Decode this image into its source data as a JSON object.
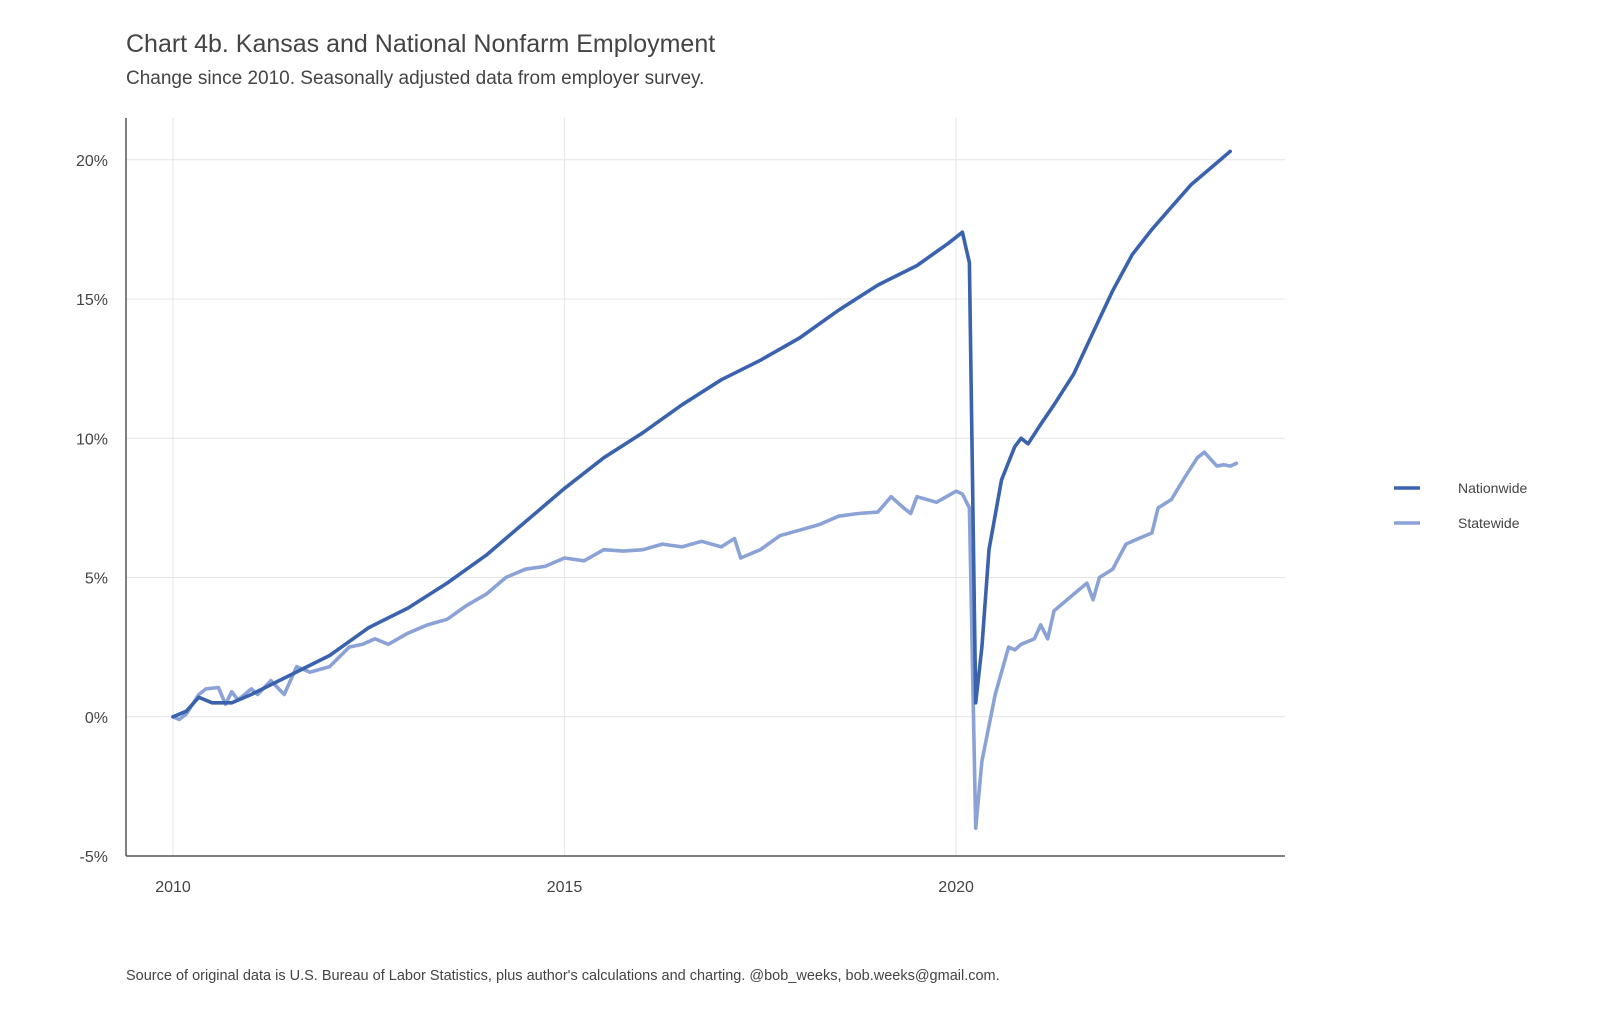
{
  "chart_data": {
    "type": "line",
    "title": "Chart 4b. Kansas and National Nonfarm Employment",
    "subtitle": "Change since 2010. Seasonally adjusted data from employer survey.",
    "caption": "Source of original data is U.S. Bureau of Labor Statistics, plus author's calculations and charting. @bob_weeks, bob.weeks@gmail.com.",
    "xlabel": "",
    "ylabel": "",
    "xlim": [
      2009.4,
      2024.2
    ],
    "ylim": [
      -5,
      21.5
    ],
    "x_ticks": [
      2010,
      2015,
      2020
    ],
    "x_tick_labels": [
      "2010",
      "2015",
      "2020"
    ],
    "y_ticks": [
      -5,
      0,
      5,
      10,
      15,
      20
    ],
    "y_tick_labels": [
      "-5%",
      "0%",
      "5%",
      "10%",
      "15%",
      "20%"
    ],
    "grid": true,
    "legend_position": "right",
    "series": [
      {
        "name": "Nationwide",
        "color": "#3a62ad",
        "points": [
          [
            2010.0,
            0.0
          ],
          [
            2010.17,
            0.2
          ],
          [
            2010.33,
            0.7
          ],
          [
            2010.5,
            0.5
          ],
          [
            2010.75,
            0.5
          ],
          [
            2011.0,
            0.8
          ],
          [
            2011.5,
            1.5
          ],
          [
            2012.0,
            2.2
          ],
          [
            2012.5,
            3.2
          ],
          [
            2013.0,
            3.9
          ],
          [
            2013.5,
            4.8
          ],
          [
            2014.0,
            5.8
          ],
          [
            2014.5,
            7.0
          ],
          [
            2015.0,
            8.2
          ],
          [
            2015.5,
            9.3
          ],
          [
            2016.0,
            10.2
          ],
          [
            2016.5,
            11.2
          ],
          [
            2017.0,
            12.1
          ],
          [
            2017.5,
            12.8
          ],
          [
            2018.0,
            13.6
          ],
          [
            2018.5,
            14.6
          ],
          [
            2019.0,
            15.5
          ],
          [
            2019.5,
            16.2
          ],
          [
            2019.9,
            17.0
          ],
          [
            2020.08,
            17.4
          ],
          [
            2020.17,
            16.3
          ],
          [
            2020.25,
            0.5
          ],
          [
            2020.33,
            2.5
          ],
          [
            2020.42,
            6.0
          ],
          [
            2020.58,
            8.5
          ],
          [
            2020.75,
            9.7
          ],
          [
            2020.83,
            10.0
          ],
          [
            2020.92,
            9.8
          ],
          [
            2021.08,
            10.5
          ],
          [
            2021.25,
            11.2
          ],
          [
            2021.5,
            12.3
          ],
          [
            2021.75,
            13.8
          ],
          [
            2022.0,
            15.3
          ],
          [
            2022.25,
            16.6
          ],
          [
            2022.5,
            17.5
          ],
          [
            2022.75,
            18.3
          ],
          [
            2023.0,
            19.1
          ],
          [
            2023.25,
            19.7
          ],
          [
            2023.5,
            20.3
          ]
        ]
      },
      {
        "name": "Statewide",
        "color": "#8aa2d6",
        "points": [
          [
            2010.0,
            0.0
          ],
          [
            2010.08,
            -0.1
          ],
          [
            2010.17,
            0.1
          ],
          [
            2010.33,
            0.8
          ],
          [
            2010.42,
            1.0
          ],
          [
            2010.58,
            1.05
          ],
          [
            2010.67,
            0.45
          ],
          [
            2010.75,
            0.9
          ],
          [
            2010.83,
            0.6
          ],
          [
            2011.0,
            1.0
          ],
          [
            2011.08,
            0.8
          ],
          [
            2011.25,
            1.3
          ],
          [
            2011.42,
            0.8
          ],
          [
            2011.58,
            1.8
          ],
          [
            2011.75,
            1.6
          ],
          [
            2012.0,
            1.8
          ],
          [
            2012.25,
            2.5
          ],
          [
            2012.42,
            2.6
          ],
          [
            2012.58,
            2.8
          ],
          [
            2012.75,
            2.6
          ],
          [
            2013.0,
            3.0
          ],
          [
            2013.25,
            3.3
          ],
          [
            2013.5,
            3.5
          ],
          [
            2013.75,
            4.0
          ],
          [
            2014.0,
            4.4
          ],
          [
            2014.25,
            5.0
          ],
          [
            2014.5,
            5.3
          ],
          [
            2014.75,
            5.4
          ],
          [
            2015.0,
            5.7
          ],
          [
            2015.25,
            5.6
          ],
          [
            2015.5,
            6.0
          ],
          [
            2015.75,
            5.95
          ],
          [
            2016.0,
            6.0
          ],
          [
            2016.25,
            6.2
          ],
          [
            2016.5,
            6.1
          ],
          [
            2016.75,
            6.3
          ],
          [
            2017.0,
            6.1
          ],
          [
            2017.17,
            6.4
          ],
          [
            2017.25,
            5.7
          ],
          [
            2017.5,
            6.0
          ],
          [
            2017.75,
            6.5
          ],
          [
            2018.0,
            6.7
          ],
          [
            2018.25,
            6.9
          ],
          [
            2018.5,
            7.2
          ],
          [
            2018.75,
            7.3
          ],
          [
            2019.0,
            7.35
          ],
          [
            2019.17,
            7.9
          ],
          [
            2019.33,
            7.5
          ],
          [
            2019.42,
            7.3
          ],
          [
            2019.5,
            7.9
          ],
          [
            2019.75,
            7.7
          ],
          [
            2020.0,
            8.1
          ],
          [
            2020.08,
            8.0
          ],
          [
            2020.17,
            7.5
          ],
          [
            2020.25,
            -4.0
          ],
          [
            2020.33,
            -1.6
          ],
          [
            2020.5,
            0.8
          ],
          [
            2020.67,
            2.5
          ],
          [
            2020.75,
            2.4
          ],
          [
            2020.83,
            2.6
          ],
          [
            2021.0,
            2.8
          ],
          [
            2021.08,
            3.3
          ],
          [
            2021.17,
            2.8
          ],
          [
            2021.25,
            3.8
          ],
          [
            2021.5,
            4.4
          ],
          [
            2021.67,
            4.8
          ],
          [
            2021.75,
            4.2
          ],
          [
            2021.83,
            5.0
          ],
          [
            2022.0,
            5.3
          ],
          [
            2022.17,
            6.2
          ],
          [
            2022.33,
            6.4
          ],
          [
            2022.5,
            6.6
          ],
          [
            2022.58,
            7.5
          ],
          [
            2022.75,
            7.8
          ],
          [
            2022.92,
            8.6
          ],
          [
            2023.08,
            9.3
          ],
          [
            2023.17,
            9.5
          ],
          [
            2023.33,
            9.0
          ],
          [
            2023.42,
            9.05
          ],
          [
            2023.5,
            9.0
          ],
          [
            2023.58,
            9.1
          ]
        ]
      }
    ]
  }
}
